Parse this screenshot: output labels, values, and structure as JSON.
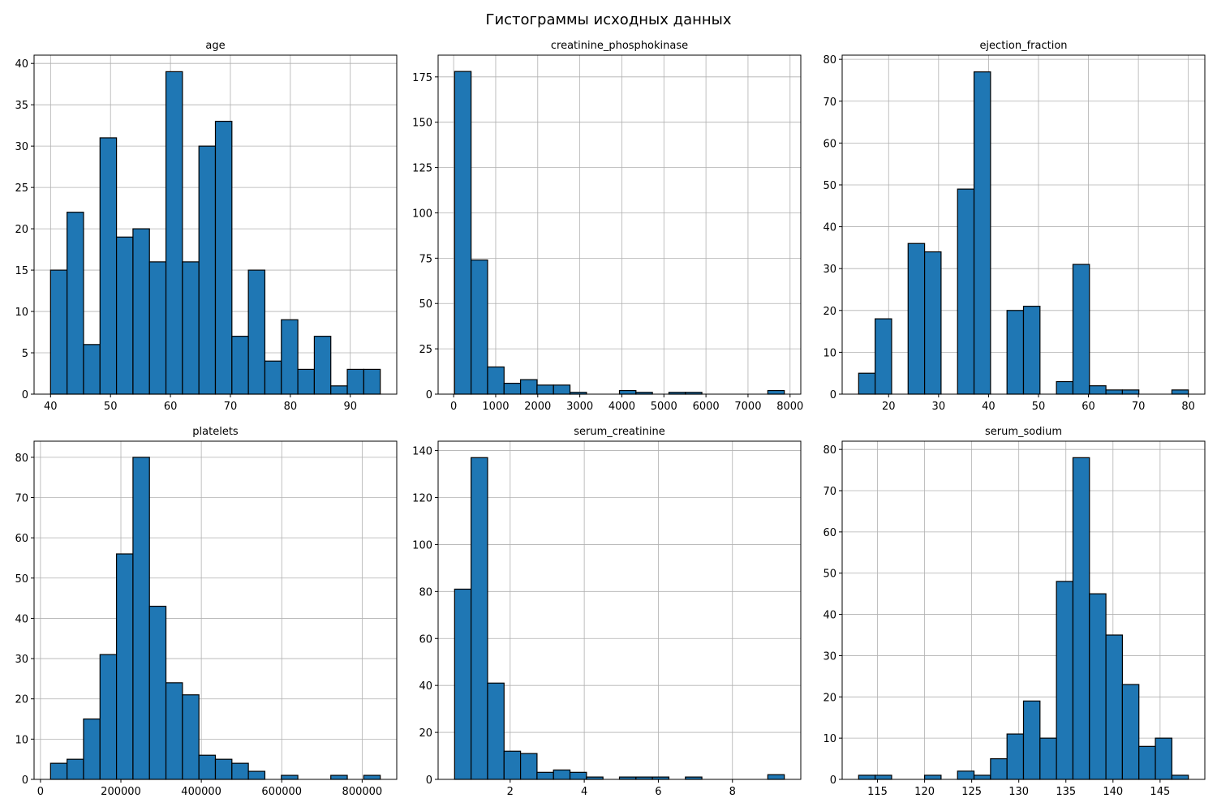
{
  "figure": {
    "title": "Гистограммы исходных данных"
  },
  "chart_data": [
    {
      "type": "bar",
      "title": "age",
      "bin_edges": [
        40.0,
        42.75,
        45.5,
        48.25,
        51.0,
        53.75,
        56.5,
        59.25,
        62.0,
        64.75,
        67.5,
        70.25,
        73.0,
        75.75,
        78.5,
        81.25,
        84.0,
        86.75,
        89.5,
        92.25,
        95.0
      ],
      "values": [
        15,
        22,
        6,
        31,
        19,
        20,
        16,
        39,
        16,
        30,
        33,
        7,
        15,
        4,
        9,
        3,
        7,
        1,
        3,
        3
      ],
      "xlim": [
        37.25,
        97.75
      ],
      "ylim": [
        0,
        41
      ],
      "xticks": [
        40,
        50,
        60,
        70,
        80,
        90
      ],
      "xtick_labels": [
        "40",
        "50",
        "60",
        "70",
        "80",
        "90"
      ],
      "yticks": [
        0,
        5,
        10,
        15,
        20,
        25,
        30,
        35,
        40
      ],
      "ytick_labels": [
        "0",
        "5",
        "10",
        "15",
        "20",
        "25",
        "30",
        "35",
        "40"
      ],
      "grid": true,
      "color": "#1f77b4"
    },
    {
      "type": "bar",
      "title": "creatinine_phosphokinase",
      "bin_edges": [
        23,
        415,
        807,
        1199,
        1591,
        1983,
        2375,
        2767,
        3159,
        3551,
        3943,
        4335,
        4727,
        5119,
        5511,
        5903,
        6295,
        6687,
        7079,
        7471,
        7863
      ],
      "values": [
        178,
        74,
        15,
        6,
        8,
        5,
        5,
        1,
        0,
        0,
        2,
        1,
        0,
        1,
        1,
        0,
        0,
        0,
        0,
        2
      ],
      "xlim": [
        -369,
        8255
      ],
      "ylim": [
        0,
        187
      ],
      "xticks": [
        0,
        1000,
        2000,
        3000,
        4000,
        5000,
        6000,
        7000,
        8000
      ],
      "xtick_labels": [
        "0",
        "1000",
        "2000",
        "3000",
        "4000",
        "5000",
        "6000",
        "7000",
        "8000"
      ],
      "yticks": [
        0,
        25,
        50,
        75,
        100,
        125,
        150,
        175
      ],
      "ytick_labels": [
        "0",
        "25",
        "50",
        "75",
        "100",
        "125",
        "150",
        "175"
      ],
      "grid": true,
      "color": "#1f77b4"
    },
    {
      "type": "bar",
      "title": "ejection_fraction",
      "bin_edges": [
        14.0,
        17.3,
        20.6,
        23.9,
        27.2,
        30.5,
        33.8,
        37.1,
        40.4,
        43.7,
        47.0,
        50.3,
        53.6,
        56.9,
        60.2,
        63.5,
        66.8,
        70.1,
        73.4,
        76.7,
        80.0
      ],
      "values": [
        5,
        18,
        0,
        36,
        34,
        0,
        49,
        77,
        0,
        20,
        21,
        0,
        3,
        31,
        2,
        1,
        1,
        0,
        0,
        1
      ],
      "xlim": [
        10.7,
        83.3
      ],
      "ylim": [
        0,
        81
      ],
      "xticks": [
        20,
        30,
        40,
        50,
        60,
        70,
        80
      ],
      "xtick_labels": [
        "20",
        "30",
        "40",
        "50",
        "60",
        "70",
        "80"
      ],
      "yticks": [
        0,
        10,
        20,
        30,
        40,
        50,
        60,
        70,
        80
      ],
      "ytick_labels": [
        "0",
        "10",
        "20",
        "30",
        "40",
        "50",
        "60",
        "70",
        "80"
      ],
      "grid": true,
      "color": "#1f77b4"
    },
    {
      "type": "bar",
      "title": "platelets",
      "bin_edges": [
        25100,
        66095,
        107090,
        148085,
        189080,
        230075,
        271070,
        312065,
        353060,
        394055,
        435050,
        476045,
        517040,
        558035,
        599030,
        640025,
        681020,
        722015,
        763010,
        804005,
        845000
      ],
      "values": [
        4,
        5,
        15,
        31,
        56,
        80,
        43,
        24,
        21,
        6,
        5,
        4,
        2,
        0,
        1,
        0,
        0,
        1,
        0,
        1
      ],
      "xlim": [
        -15900,
        886000
      ],
      "ylim": [
        0,
        84
      ],
      "xticks": [
        0,
        200000,
        400000,
        600000,
        800000
      ],
      "xtick_labels": [
        "0",
        "200000",
        "400000",
        "600000",
        "800000"
      ],
      "yticks": [
        0,
        10,
        20,
        30,
        40,
        50,
        60,
        70,
        80
      ],
      "ytick_labels": [
        "0",
        "10",
        "20",
        "30",
        "40",
        "50",
        "60",
        "70",
        "80"
      ],
      "grid": true,
      "color": "#1f77b4"
    },
    {
      "type": "bar",
      "title": "serum_creatinine",
      "bin_edges": [
        0.5,
        0.945,
        1.39,
        1.835,
        2.28,
        2.725,
        3.17,
        3.615,
        4.06,
        4.505,
        4.95,
        5.395,
        5.84,
        6.285,
        6.73,
        7.175,
        7.62,
        8.065,
        8.51,
        8.955,
        9.4
      ],
      "values": [
        81,
        137,
        41,
        12,
        11,
        3,
        4,
        3,
        1,
        0,
        1,
        1,
        1,
        0,
        1,
        0,
        0,
        0,
        0,
        2
      ],
      "xlim": [
        0.055,
        9.845
      ],
      "ylim": [
        0,
        144
      ],
      "xticks": [
        2,
        4,
        6,
        8
      ],
      "xtick_labels": [
        "2",
        "4",
        "6",
        "8"
      ],
      "yticks": [
        0,
        20,
        40,
        60,
        80,
        100,
        120,
        140
      ],
      "ytick_labels": [
        "0",
        "20",
        "40",
        "60",
        "80",
        "100",
        "120",
        "140"
      ],
      "grid": true,
      "color": "#1f77b4"
    },
    {
      "type": "bar",
      "title": "serum_sodium",
      "bin_edges": [
        113.0,
        114.75,
        116.5,
        118.25,
        120.0,
        121.75,
        123.5,
        125.25,
        127.0,
        128.75,
        130.5,
        132.25,
        134.0,
        135.75,
        137.5,
        139.25,
        141.0,
        142.75,
        144.5,
        146.25,
        148.0
      ],
      "values": [
        1,
        1,
        0,
        0,
        1,
        0,
        2,
        1,
        5,
        11,
        19,
        10,
        48,
        78,
        45,
        35,
        23,
        8,
        10,
        1
      ],
      "xlim": [
        111.25,
        149.75
      ],
      "ylim": [
        0,
        82
      ],
      "xticks": [
        115,
        120,
        125,
        130,
        135,
        140,
        145
      ],
      "xtick_labels": [
        "115",
        "120",
        "125",
        "130",
        "135",
        "140",
        "145"
      ],
      "yticks": [
        0,
        10,
        20,
        30,
        40,
        50,
        60,
        70,
        80
      ],
      "ytick_labels": [
        "0",
        "10",
        "20",
        "30",
        "40",
        "50",
        "60",
        "70",
        "80"
      ],
      "grid": true,
      "color": "#1f77b4"
    }
  ]
}
